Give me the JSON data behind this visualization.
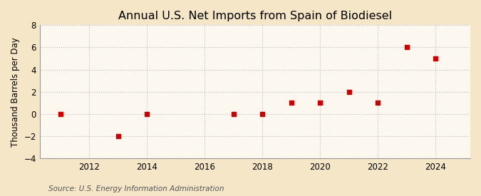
{
  "title": "Annual U.S. Net Imports from Spain of Biodiesel",
  "ylabel": "Thousand Barrels per Day",
  "source": "Source: U.S. Energy Information Administration",
  "outer_bg_color": "#f5e6c8",
  "plot_bg_color": "#fdf8ef",
  "years": [
    2011,
    2013,
    2014,
    2017,
    2018,
    2019,
    2020,
    2021,
    2022,
    2023,
    2024
  ],
  "values": [
    0,
    -2,
    0,
    0,
    0,
    1,
    1,
    2,
    1,
    6,
    5
  ],
  "marker_color": "#cc0000",
  "marker": "s",
  "marker_size": 4,
  "xlim": [
    2010.3,
    2025.2
  ],
  "ylim": [
    -4,
    8
  ],
  "yticks": [
    -4,
    -2,
    0,
    2,
    4,
    6,
    8
  ],
  "xticks": [
    2012,
    2014,
    2016,
    2018,
    2020,
    2022,
    2024
  ],
  "grid_color": "#bbbbbb",
  "grid_linestyle": ":",
  "title_fontsize": 11.5,
  "label_fontsize": 8.5,
  "tick_fontsize": 8.5,
  "source_fontsize": 7.5
}
